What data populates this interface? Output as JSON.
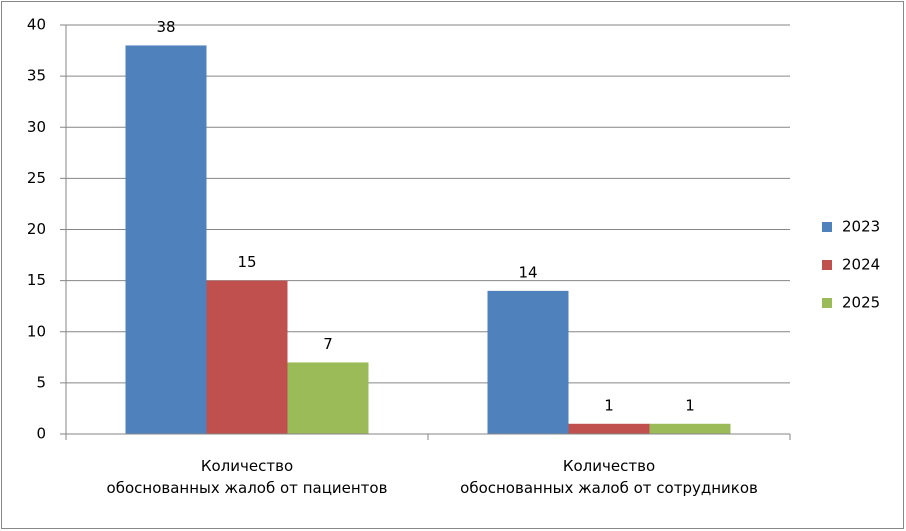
{
  "chart_data": {
    "type": "bar",
    "categories": [
      "Количество\nобоснованных жалоб от пациентов",
      "Количество\nобоснованных жалоб от сотрудников"
    ],
    "series": [
      {
        "name": "2023",
        "color": "#4f81bd",
        "values": [
          38,
          14
        ]
      },
      {
        "name": "2024",
        "color": "#c0504d",
        "values": [
          15,
          1
        ]
      },
      {
        "name": "2025",
        "color": "#9bbb59",
        "values": [
          7,
          1
        ]
      }
    ],
    "ylim": [
      0,
      40
    ],
    "yticks": [
      0,
      5,
      10,
      15,
      20,
      25,
      30,
      35,
      40
    ],
    "grid": true,
    "legend": "right"
  }
}
